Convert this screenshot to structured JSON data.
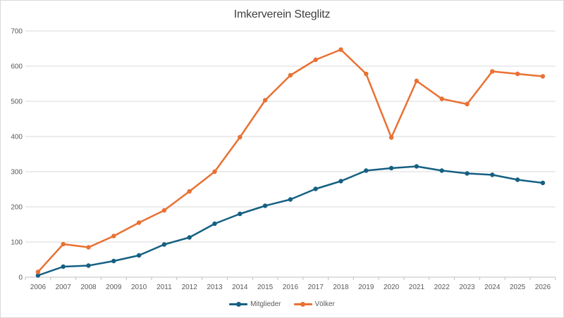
{
  "title": "Imkerverein Steglitz",
  "colors": {
    "series_mitglieder": "#156082",
    "series_voelker": "#E97132",
    "gridline": "#d9d9d9",
    "axis_line": "#bfbfbf",
    "tick_label": "#595959",
    "title_text": "#404040",
    "chart_border": "#d9d9d9",
    "background": "#ffffff"
  },
  "chart_data": {
    "type": "line",
    "title": "Imkerverein Steglitz",
    "xlabel": "",
    "ylabel": "",
    "categories": [
      "2006",
      "2007",
      "2008",
      "2009",
      "2010",
      "2011",
      "2012",
      "2013",
      "2014",
      "2015",
      "2016",
      "2017",
      "2018",
      "2019",
      "2020",
      "2021",
      "2022",
      "2023",
      "2024",
      "2025",
      "2026"
    ],
    "series": [
      {
        "name": "Mitglieder",
        "color": "#156082",
        "values": [
          5,
          30,
          33,
          46,
          62,
          93,
          113,
          152,
          180,
          203,
          221,
          251,
          273,
          303,
          310,
          315,
          303,
          295,
          291,
          277,
          268
        ]
      },
      {
        "name": "Völker",
        "color": "#E97132",
        "values": [
          15,
          94,
          85,
          117,
          155,
          190,
          244,
          300,
          398,
          503,
          574,
          618,
          647,
          578,
          397,
          558,
          507,
          492,
          585,
          578,
          571
        ]
      }
    ],
    "ylim": [
      0,
      700
    ],
    "yticks": [
      0,
      100,
      200,
      300,
      400,
      500,
      600,
      700
    ],
    "grid": true,
    "legend_position": "bottom"
  },
  "legend": {
    "items": [
      {
        "label": "Mitglieder",
        "color": "#156082"
      },
      {
        "label": "Völker",
        "color": "#E97132"
      }
    ]
  }
}
